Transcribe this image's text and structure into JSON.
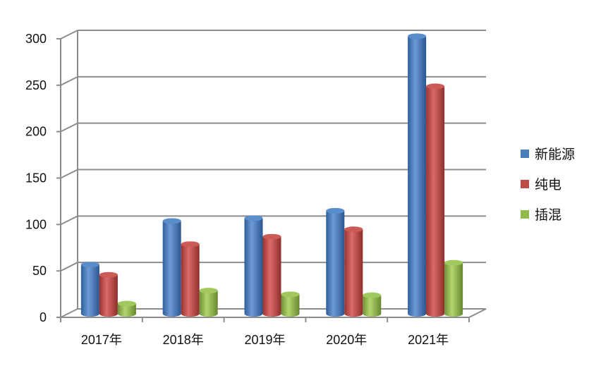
{
  "chart_data": {
    "type": "bar",
    "title": "",
    "xlabel": "",
    "ylabel": "",
    "categories": [
      "2017年",
      "2018年",
      "2019年",
      "2020年",
      "2021年"
    ],
    "series": [
      {
        "name": "新能源",
        "values": [
          53,
          100,
          103,
          111,
          299
        ],
        "color": "#4A7EBB"
      },
      {
        "name": "纯电",
        "values": [
          42,
          75,
          83,
          91,
          245
        ],
        "color": "#BE4B48"
      },
      {
        "name": "插混",
        "values": [
          11,
          25,
          21,
          20,
          55
        ],
        "color": "#8FB84A"
      }
    ],
    "ylim": [
      0,
      300
    ],
    "yticks": [
      0,
      50,
      100,
      150,
      200,
      250,
      300
    ],
    "grid": true,
    "legend_position": "right",
    "style": "3d-cylinder"
  }
}
